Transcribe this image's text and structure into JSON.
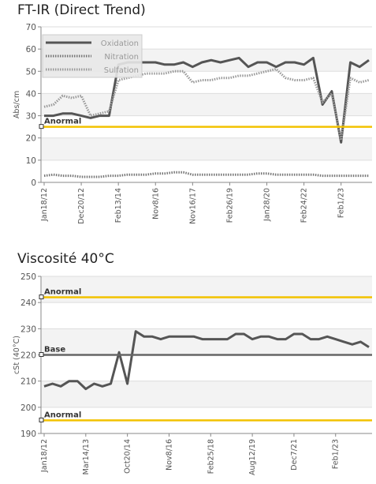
{
  "chart_data": [
    {
      "type": "line",
      "title": "FT-IR (Direct Trend)",
      "ylabel": "Abs/cm",
      "ylim": [
        0,
        70
      ],
      "yticks": [
        0,
        10,
        20,
        30,
        40,
        50,
        60,
        70
      ],
      "x_tick_labels": [
        "Jan18/12",
        "Dec20/12",
        "Feb13/14",
        "Nov8/16",
        "Nov16/17",
        "Feb26/19",
        "Jan28/20",
        "Feb24/22",
        "Feb1/23"
      ],
      "x_tick_positions": [
        0,
        4,
        8,
        12,
        16,
        20,
        24,
        28,
        32
      ],
      "x_count": 36,
      "grid": true,
      "legend_position": "top-left",
      "series": [
        {
          "name": "Oxidation",
          "color": "#555555",
          "style": "solid",
          "values": [
            30,
            30,
            31,
            31,
            30,
            29,
            30,
            30,
            53,
            54,
            54,
            54,
            54,
            53,
            53,
            54,
            52,
            54,
            55,
            54,
            55,
            56,
            52,
            54,
            54,
            52,
            54,
            54,
            53,
            56,
            35,
            41,
            18,
            54,
            52,
            55
          ]
        },
        {
          "name": "Nitration",
          "color": "#777777",
          "style": "dotted",
          "values": [
            3,
            3.5,
            3,
            3,
            2.5,
            2.5,
            2.5,
            3,
            3,
            3.5,
            3.5,
            3.5,
            4,
            4,
            4.5,
            4.5,
            3.5,
            3.5,
            3.5,
            3.5,
            3.5,
            3.5,
            3.5,
            4,
            4,
            3.5,
            3.5,
            3.5,
            3.5,
            3.5,
            3,
            3,
            3,
            3,
            3,
            3
          ]
        },
        {
          "name": "Sulfation",
          "color": "#999999",
          "style": "dotted",
          "values": [
            34,
            35,
            39,
            38,
            39,
            30,
            31,
            32,
            46,
            47,
            48,
            49,
            49,
            49,
            50,
            50,
            45,
            46,
            46,
            47,
            47,
            48,
            48,
            49,
            50,
            51,
            47,
            46,
            46,
            47,
            36,
            40,
            19,
            47,
            45,
            46
          ]
        }
      ],
      "reference_lines": [
        {
          "label": "Anormal",
          "value": 25,
          "color": "#f2c200"
        }
      ]
    },
    {
      "type": "line",
      "title": "Viscosité 40°C",
      "ylabel": "cSt (40°C)",
      "ylim": [
        190,
        250
      ],
      "yticks": [
        190,
        200,
        210,
        220,
        230,
        240,
        250
      ],
      "x_tick_labels": [
        "Jan18/12",
        "Mar14/13",
        "Oct20/14",
        "Nov8/16",
        "Feb25/18",
        "Aug12/19",
        "Dec7/21",
        "Feb1/23"
      ],
      "x_tick_positions": [
        0,
        5,
        10,
        15,
        20,
        25,
        30,
        35
      ],
      "x_count": 40,
      "grid": true,
      "series": [
        {
          "name": "",
          "color": "#555555",
          "style": "solid",
          "values": [
            208,
            209,
            208,
            210,
            210,
            207,
            209,
            208,
            209,
            221,
            209,
            229,
            227,
            227,
            226,
            227,
            227,
            227,
            227,
            226,
            226,
            226,
            226,
            228,
            228,
            226,
            227,
            227,
            226,
            226,
            228,
            228,
            226,
            226,
            227,
            226,
            225,
            224,
            225,
            223
          ]
        }
      ],
      "reference_lines": [
        {
          "label": "Anormal",
          "value": 242,
          "color": "#f2c200"
        },
        {
          "label": "Base",
          "value": 220,
          "color": "#666666"
        },
        {
          "label": "Anormal",
          "value": 195,
          "color": "#f2c200"
        }
      ]
    }
  ]
}
